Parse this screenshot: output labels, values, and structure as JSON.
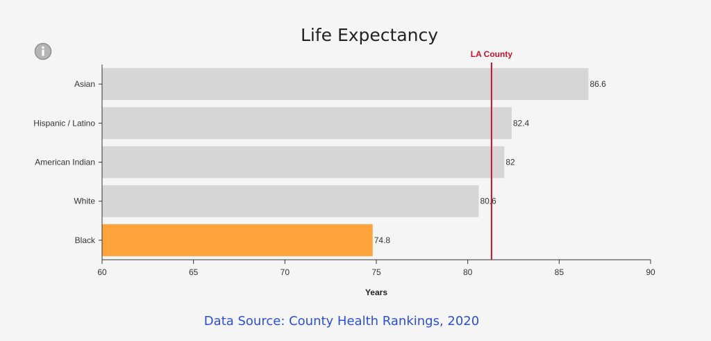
{
  "chart_data": {
    "type": "bar",
    "orientation": "horizontal",
    "title": "Life Expectancy",
    "xlabel": "Years",
    "ylabel": "",
    "xlim": [
      60,
      90
    ],
    "xticks": [
      60,
      65,
      70,
      75,
      80,
      85,
      90
    ],
    "categories": [
      "Asian",
      "Hispanic / Latino",
      "American Indian",
      "White",
      "Black"
    ],
    "values": [
      86.6,
      82.4,
      82,
      80.6,
      74.8
    ],
    "highlight_category": "Black",
    "bar_color": "#d6d6d6",
    "highlight_color": "#ffa43d",
    "reference_line": {
      "label": "LA County",
      "value": 81.3,
      "color": "#c8102e"
    }
  },
  "source_text": "Data Source: County Health Rankings, 2020",
  "info_icon": "info-icon"
}
